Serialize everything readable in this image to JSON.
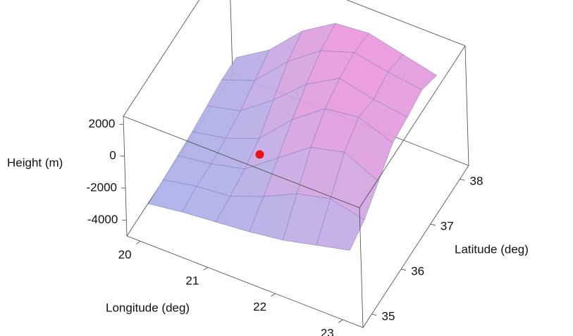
{
  "chart_data": {
    "type": "surface",
    "xlabel": "Longitude (deg)",
    "ylabel": "Latitude (deg)",
    "zlabel": "Height (m)",
    "x": [
      20,
      20.5,
      21,
      21.5,
      22,
      22.5,
      23
    ],
    "y": [
      35,
      35.5,
      36,
      36.5,
      37,
      37.5,
      38
    ],
    "z": [
      [
        -3500,
        -3200,
        -3000,
        -2800,
        -2500,
        -2000,
        -1500
      ],
      [
        -3400,
        -3000,
        -2800,
        -2000,
        -1000,
        -500,
        -1000
      ],
      [
        -3300,
        -3000,
        -2500,
        -1000,
        500,
        1000,
        0
      ],
      [
        -3200,
        -2800,
        -2000,
        0,
        1500,
        1800,
        1000
      ],
      [
        -3000,
        -2500,
        -1000,
        800,
        2000,
        1500,
        1200
      ],
      [
        -2800,
        -2000,
        0,
        1500,
        2200,
        1800,
        1500
      ],
      [
        -2800,
        -1500,
        500,
        1800,
        2000,
        1500,
        1000
      ]
    ],
    "xlim": [
      19.8,
      23.3
    ],
    "ylim": [
      34.7,
      38.3
    ],
    "zlim": [
      -5000,
      2500
    ],
    "xticks": [
      20,
      21,
      22,
      23
    ],
    "yticks": [
      35,
      36,
      37,
      38
    ],
    "zticks": [
      -4000,
      -2000,
      0,
      2000
    ],
    "point": {
      "x": 21,
      "y": 36.5,
      "z": -3000,
      "color": "#ee1111"
    }
  }
}
